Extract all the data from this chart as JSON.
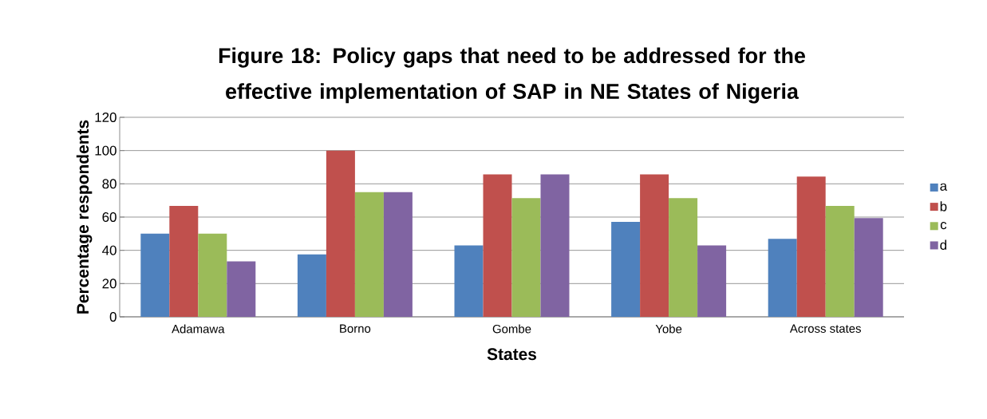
{
  "chart_data": {
    "type": "bar",
    "title": "Figure 18: Policy gaps that need to be addressed for the effective implementation of SAP in NE States of Nigeria",
    "xlabel": "States",
    "ylabel": "Percentage respondents",
    "categories": [
      "Adamawa",
      "Borno",
      "Gombe",
      "Yobe",
      "Across states"
    ],
    "series": [
      {
        "name": "a",
        "color": "#4f81bd",
        "values": [
          50,
          37.5,
          42.9,
          57.1,
          46.9
        ]
      },
      {
        "name": "b",
        "color": "#c0504d",
        "values": [
          66.7,
          100,
          85.7,
          85.7,
          84.4
        ]
      },
      {
        "name": "c",
        "color": "#9bbb59",
        "values": [
          50,
          75,
          71.4,
          71.4,
          66.7
        ]
      },
      {
        "name": "d",
        "color": "#8064a2",
        "values": [
          33.3,
          75,
          85.7,
          42.9,
          59.4
        ]
      }
    ],
    "ylim": [
      0,
      120
    ],
    "yticks": [
      0,
      20,
      40,
      60,
      80,
      100,
      120
    ],
    "grid": "y",
    "legend": "right"
  }
}
